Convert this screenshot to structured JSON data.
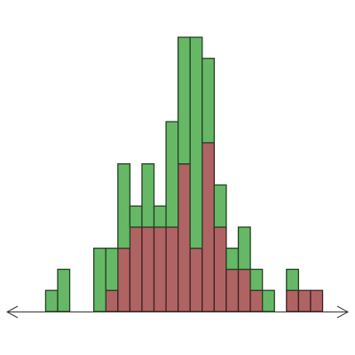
{
  "chart_data": {
    "type": "histogram",
    "bins": [
      0,
      1,
      2,
      3,
      4,
      5,
      6,
      7,
      8,
      9,
      10,
      11,
      12,
      13,
      14,
      15,
      16,
      17,
      18,
      19,
      20,
      21,
      22,
      23
    ],
    "xlim": [
      -3.2,
      25.1
    ],
    "ylim": [
      0,
      13
    ],
    "stacked": true,
    "series": [
      {
        "color": "#b06363",
        "values": [
          0,
          0,
          0,
          0,
          0,
          1,
          3,
          4,
          4,
          4,
          4,
          7,
          3,
          8,
          4,
          2,
          2,
          1,
          0,
          0,
          1,
          1,
          1
        ]
      },
      {
        "color": "#66b866",
        "values": [
          1,
          2,
          0,
          0,
          3,
          2,
          4,
          1,
          3,
          1,
          5,
          6,
          10,
          4,
          2,
          1,
          2,
          1,
          1,
          0,
          1,
          0,
          0
        ]
      }
    ]
  }
}
